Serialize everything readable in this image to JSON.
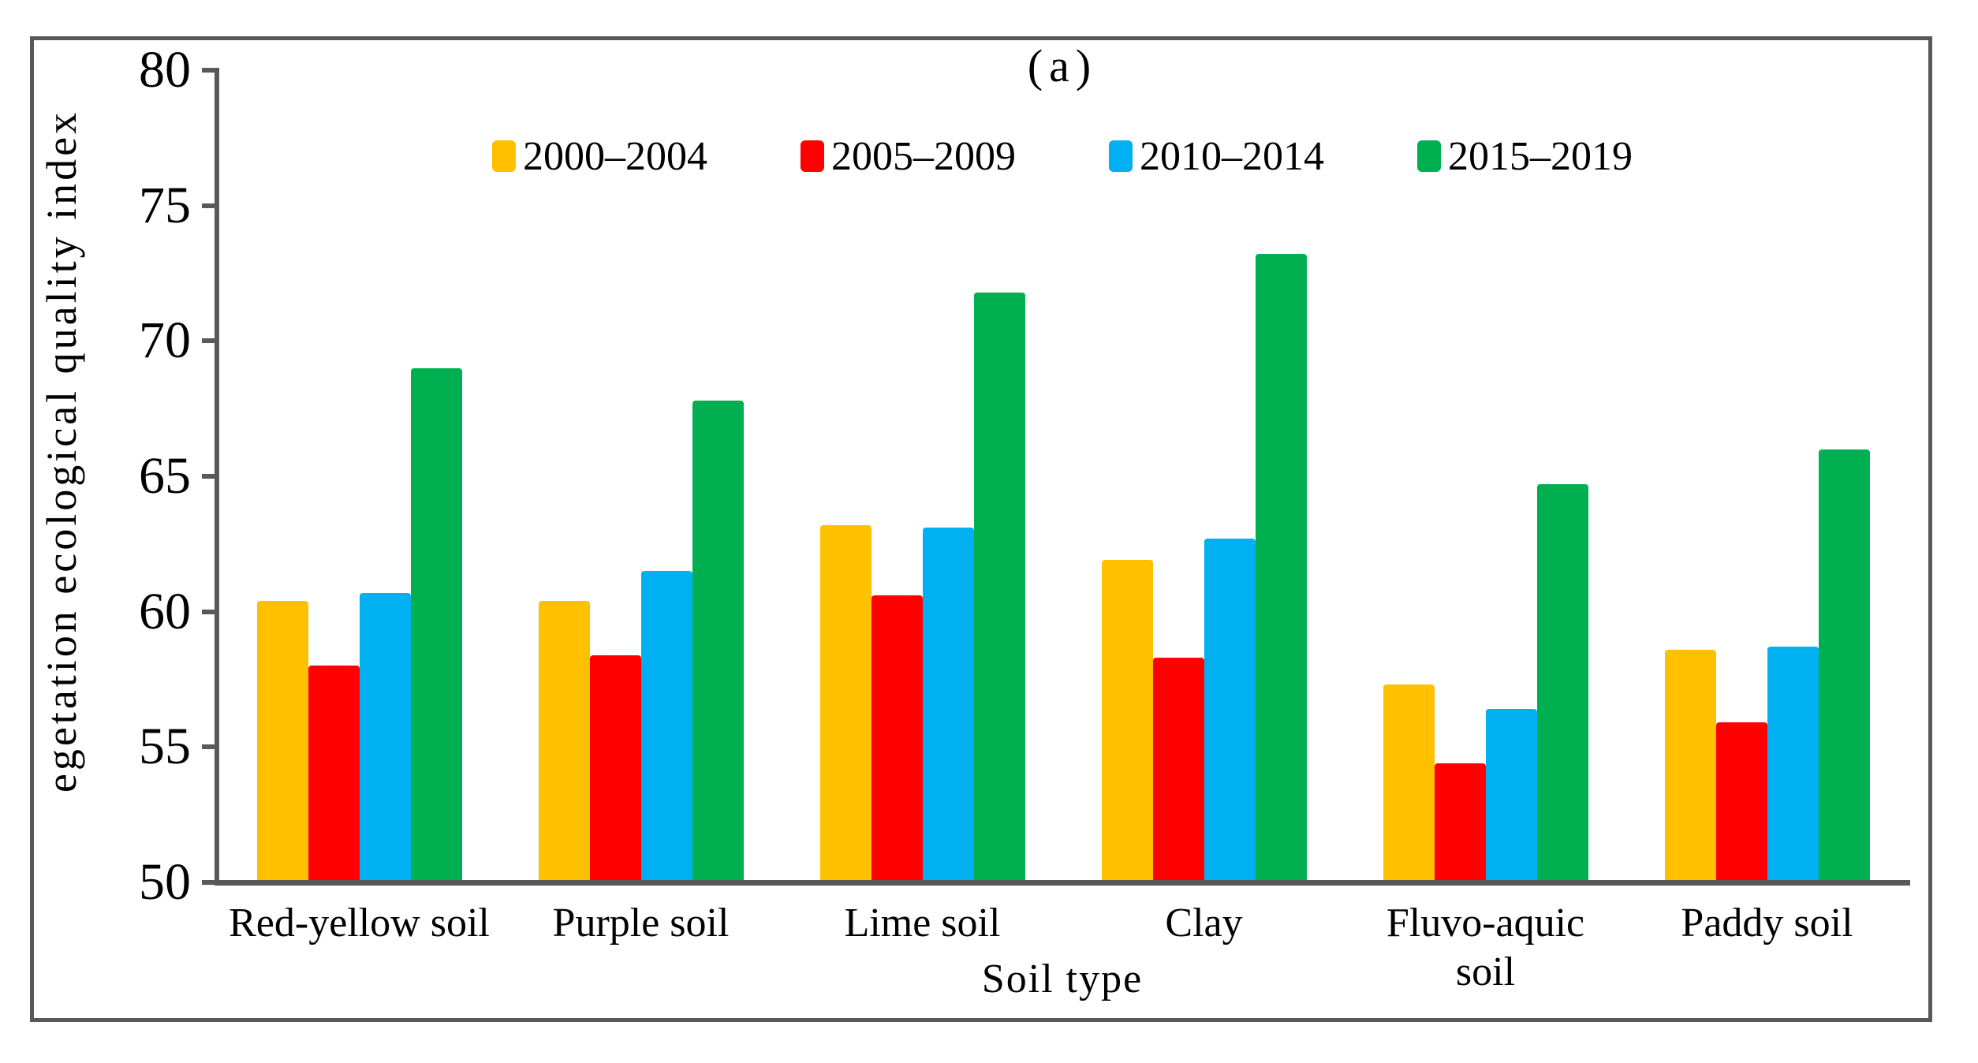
{
  "figure": {
    "panel_label": "(a)",
    "background": "#FFFFFF",
    "border_color": "#595959"
  },
  "colors": {
    "axis": "#595959",
    "text": "#000000"
  },
  "chart_data": {
    "type": "bar",
    "title": "(a)",
    "xlabel": "Soil type",
    "ylabel": "egetation ecological quality index",
    "ylim": [
      50,
      80
    ],
    "y_ticks": [
      80,
      75,
      70,
      65,
      60,
      55,
      50
    ],
    "grid": false,
    "legend_position": "top-center",
    "categories": [
      "Red-yellow soil",
      "Purple soil",
      "Lime soil",
      "Clay",
      "Fluvo-aquic soil",
      "Paddy soil"
    ],
    "category_label_lines": [
      [
        "Red-yellow soil"
      ],
      [
        "Purple soil"
      ],
      [
        "Lime soil"
      ],
      [
        "Clay"
      ],
      [
        "Fluvo-aquic",
        "soil"
      ],
      [
        "Paddy soil"
      ]
    ],
    "series": [
      {
        "name": "2000–2004",
        "color": "#FFC000",
        "values": [
          60.4,
          60.4,
          63.2,
          61.9,
          57.3,
          58.6
        ]
      },
      {
        "name": "2005–2009",
        "color": "#FF0000",
        "values": [
          58.0,
          58.4,
          60.6,
          58.3,
          54.4,
          55.9
        ]
      },
      {
        "name": "2010–2014",
        "color": "#00B0F0",
        "values": [
          60.7,
          61.5,
          63.1,
          62.7,
          56.4,
          58.7
        ]
      },
      {
        "name": "2015–2019",
        "color": "#00B050",
        "values": [
          69.0,
          67.8,
          71.8,
          73.2,
          64.7,
          66.0
        ]
      }
    ]
  }
}
